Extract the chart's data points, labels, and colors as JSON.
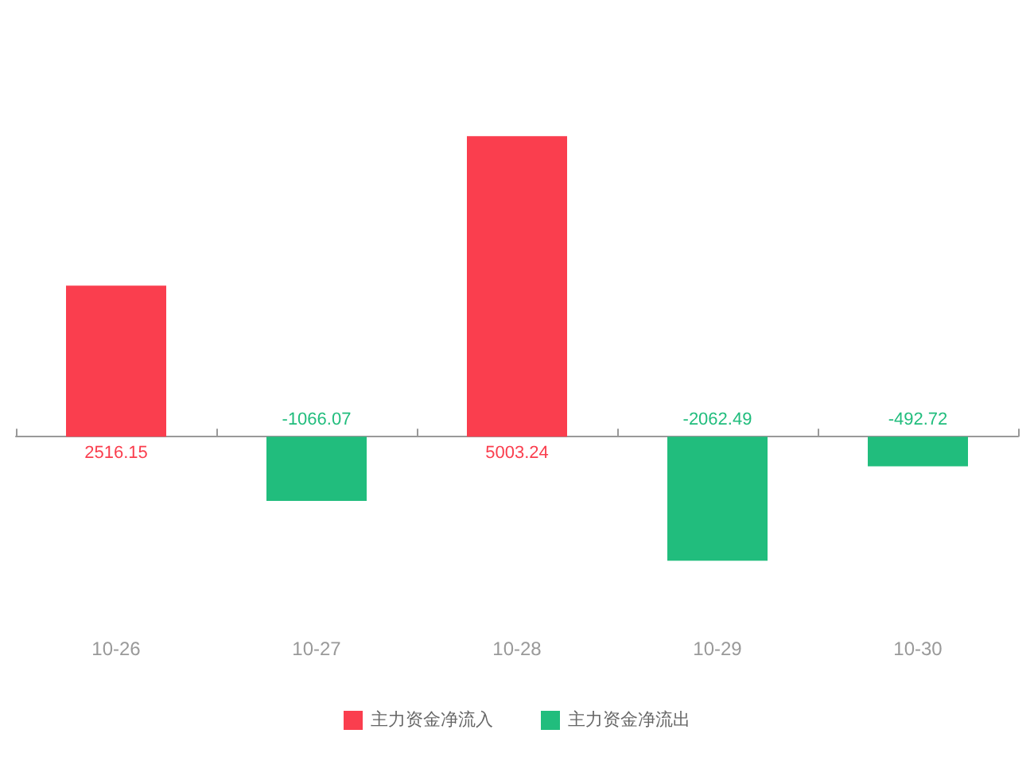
{
  "chart_data": {
    "type": "bar",
    "categories": [
      "10-26",
      "10-27",
      "10-28",
      "10-29",
      "10-30"
    ],
    "stacked": true,
    "series": [
      {
        "name": "主力资金净流入",
        "color": "#fa3e4e",
        "values": [
          2516.15,
          null,
          5003.24,
          null,
          null
        ]
      },
      {
        "name": "主力资金净流出",
        "color": "#21bd7d",
        "values": [
          null,
          -1066.07,
          null,
          -2062.49,
          -492.72
        ]
      }
    ],
    "data_labels": true,
    "legend": "bottom"
  }
}
